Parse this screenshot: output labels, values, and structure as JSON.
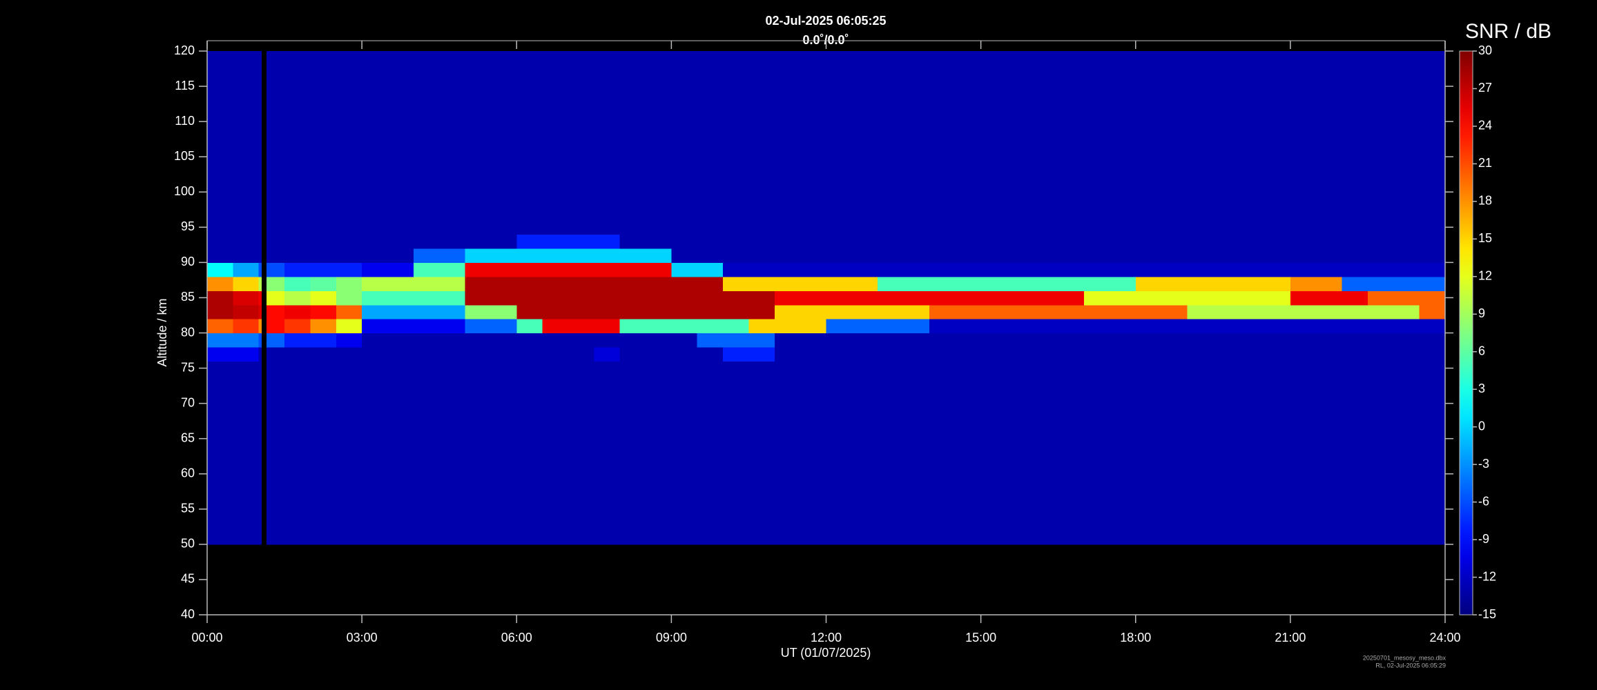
{
  "chart_data": {
    "type": "heatmap",
    "title": "02-Jul-2025 06:05:25",
    "subtitle": "0.0˚/0.0˚",
    "x_label": "UT (01/07/2025)",
    "y_label": "Altitude / km",
    "colorbar_label": "SNR / dB",
    "footer": [
      "20250701_mesosy_meso.dbx",
      "RL, 02-Jul-2025 06:05:29"
    ],
    "colormap": "jet",
    "xlim": [
      0,
      24
    ],
    "xticks": [
      {
        "value": 0,
        "label": "00:00"
      },
      {
        "value": 3,
        "label": "03:00"
      },
      {
        "value": 6,
        "label": "06:00"
      },
      {
        "value": 9,
        "label": "09:00"
      },
      {
        "value": 12,
        "label": "12:00"
      },
      {
        "value": 15,
        "label": "15:00"
      },
      {
        "value": 18,
        "label": "18:00"
      },
      {
        "value": 21,
        "label": "21:00"
      },
      {
        "value": 24,
        "label": "24:00"
      }
    ],
    "ylim": [
      40,
      120
    ],
    "yticks": [
      40,
      45,
      50,
      55,
      60,
      65,
      70,
      75,
      80,
      85,
      90,
      95,
      100,
      105,
      110,
      115,
      120
    ],
    "clim": [
      -15,
      30
    ],
    "cticks": [
      -15,
      -12,
      -9,
      -6,
      -3,
      0,
      3,
      6,
      9,
      12,
      15,
      18,
      21,
      24,
      27,
      30
    ],
    "xbins": [
      0,
      0.5,
      1,
      1.05,
      1.15,
      1.5,
      2,
      2.5,
      3,
      3.5,
      4,
      4.5,
      5,
      5.5,
      6,
      6.5,
      7,
      7.5,
      8,
      8.5,
      9,
      9.5,
      10,
      10.5,
      11,
      11.5,
      12,
      12.5,
      13,
      13.5,
      14,
      14.5,
      15,
      15.5,
      16,
      16.5,
      17,
      17.5,
      18,
      18.5,
      19,
      19.5,
      20,
      20.5,
      21,
      21.5,
      22,
      22.5,
      23,
      23.5,
      24
    ],
    "ybins": [
      50,
      76,
      78,
      80,
      82,
      84,
      86,
      88,
      90,
      92,
      94,
      120
    ],
    "z": [
      [
        -13,
        -13,
        -13,
        null,
        -13,
        -13,
        -13,
        -13,
        -13,
        -13,
        -13,
        -13,
        -13,
        -13,
        -13,
        -13,
        -13,
        -13,
        -13,
        -13,
        -13,
        -13,
        -13,
        -13,
        -13,
        -13,
        -13,
        -13,
        -13,
        -13,
        -13,
        -13,
        -13,
        -13,
        -13,
        -13,
        -13,
        -13,
        -13,
        -13,
        -13,
        -13,
        -13,
        -13,
        -13,
        -13,
        -13,
        -13,
        -13,
        -13
      ],
      [
        -10,
        -10,
        -13,
        null,
        -13,
        -13,
        -13,
        -13,
        -13,
        -13,
        -13,
        -13,
        -13,
        -13,
        -13,
        -13,
        -13,
        -11,
        -13,
        -13,
        -13,
        -13,
        -8,
        -8,
        -13,
        -13,
        -13,
        -13,
        -13,
        -13,
        -13,
        -13,
        -13,
        -13,
        -13,
        -13,
        -13,
        -13,
        -13,
        -13,
        -13,
        -13,
        -13,
        -13,
        -13,
        -13,
        -13,
        -13,
        -13,
        -13
      ],
      [
        -4,
        -4,
        -6,
        null,
        -5,
        -8,
        -8,
        -10,
        -13,
        -13,
        -13,
        -13,
        -13,
        -13,
        -13,
        -13,
        -13,
        -13,
        -13,
        -13,
        -13,
        -5,
        -5,
        -5,
        -13,
        -13,
        -13,
        -13,
        -13,
        -13,
        -13,
        -13,
        -13,
        -13,
        -13,
        -13,
        -13,
        -13,
        -13,
        -13,
        -13,
        -13,
        -13,
        -13,
        -13,
        -13,
        -13,
        -13,
        -13,
        -13
      ],
      [
        20,
        22,
        18,
        null,
        24,
        22,
        18,
        12,
        -10,
        -10,
        -10,
        -10,
        -5,
        -5,
        5,
        25,
        25,
        25,
        5,
        5,
        5,
        5,
        5,
        15,
        15,
        15,
        -5,
        -5,
        -5,
        -5,
        -12,
        -12,
        -12,
        -12,
        -12,
        -12,
        -12,
        -12,
        -12,
        -12,
        -12,
        -12,
        -12,
        -12,
        -12,
        -12,
        -12,
        -12,
        -12,
        -12
      ],
      [
        28,
        27,
        26,
        null,
        24,
        25,
        24,
        20,
        -2,
        -2,
        -2,
        -2,
        8,
        8,
        28,
        28,
        28,
        28,
        28,
        28,
        28,
        28,
        28,
        28,
        15,
        15,
        15,
        15,
        15,
        15,
        20,
        20,
        20,
        20,
        20,
        20,
        20,
        20,
        20,
        20,
        10,
        10,
        10,
        10,
        10,
        10,
        10,
        10,
        10,
        20
      ],
      [
        28,
        26,
        25,
        null,
        12,
        10,
        12,
        8,
        5,
        5,
        5,
        5,
        28,
        28,
        28,
        28,
        28,
        28,
        28,
        28,
        28,
        28,
        28,
        28,
        25,
        25,
        25,
        25,
        25,
        25,
        25,
        25,
        25,
        25,
        25,
        25,
        12,
        12,
        12,
        12,
        12,
        12,
        12,
        12,
        25,
        25,
        25,
        20,
        20,
        20
      ],
      [
        18,
        15,
        10,
        null,
        8,
        5,
        6,
        8,
        10,
        10,
        10,
        10,
        28,
        28,
        28,
        28,
        28,
        28,
        28,
        28,
        28,
        28,
        15,
        15,
        15,
        15,
        15,
        15,
        5,
        5,
        5,
        5,
        5,
        5,
        5,
        5,
        5,
        5,
        15,
        15,
        15,
        15,
        15,
        15,
        18,
        18,
        -5,
        -5,
        -5,
        -5
      ],
      [
        2,
        -2,
        -6,
        null,
        -6,
        -8,
        -8,
        -8,
        -10,
        -10,
        5,
        5,
        25,
        25,
        25,
        25,
        25,
        25,
        25,
        25,
        0,
        0,
        -12,
        -12,
        -12,
        -12,
        -12,
        -12,
        -12,
        -12,
        -12,
        -12,
        -12,
        -12,
        -12,
        -12,
        -12,
        -12,
        -12,
        -12,
        -12,
        -12,
        -12,
        -12,
        -12,
        -12,
        -12,
        -12,
        -12,
        -12
      ],
      [
        -13,
        -13,
        -13,
        null,
        -13,
        -13,
        -13,
        -13,
        -13,
        -13,
        -5,
        -5,
        0,
        0,
        0,
        0,
        0,
        0,
        0,
        0,
        -13,
        -13,
        -13,
        -13,
        -13,
        -13,
        -13,
        -13,
        -13,
        -13,
        -13,
        -13,
        -13,
        -13,
        -13,
        -13,
        -13,
        -13,
        -13,
        -13,
        -13,
        -13,
        -13,
        -13,
        -13,
        -13,
        -13,
        -13,
        -13,
        -13
      ],
      [
        -13,
        -13,
        -13,
        null,
        -13,
        -13,
        -13,
        -13,
        -13,
        -13,
        -13,
        -13,
        -13,
        -13,
        -8,
        -8,
        -8,
        -8,
        -13,
        -13,
        -13,
        -13,
        -13,
        -13,
        -13,
        -13,
        -13,
        -13,
        -13,
        -13,
        -13,
        -13,
        -13,
        -13,
        -13,
        -13,
        -13,
        -13,
        -13,
        -13,
        -13,
        -13,
        -13,
        -13,
        -13,
        -13,
        -13,
        -13,
        -13,
        -13
      ],
      [
        -13,
        -13,
        -13,
        null,
        -13,
        -13,
        -13,
        -13,
        -13,
        -13,
        -13,
        -13,
        -13,
        -13,
        -13,
        -13,
        -13,
        -13,
        -13,
        -13,
        -13,
        -13,
        -13,
        -13,
        -13,
        -13,
        -13,
        -13,
        -13,
        -13,
        -13,
        -13,
        -13,
        -13,
        -13,
        -13,
        -13,
        -13,
        -13,
        -13,
        -13,
        -13,
        -13,
        -13,
        -13,
        -13,
        -13,
        -13,
        -13,
        -13
      ]
    ]
  }
}
